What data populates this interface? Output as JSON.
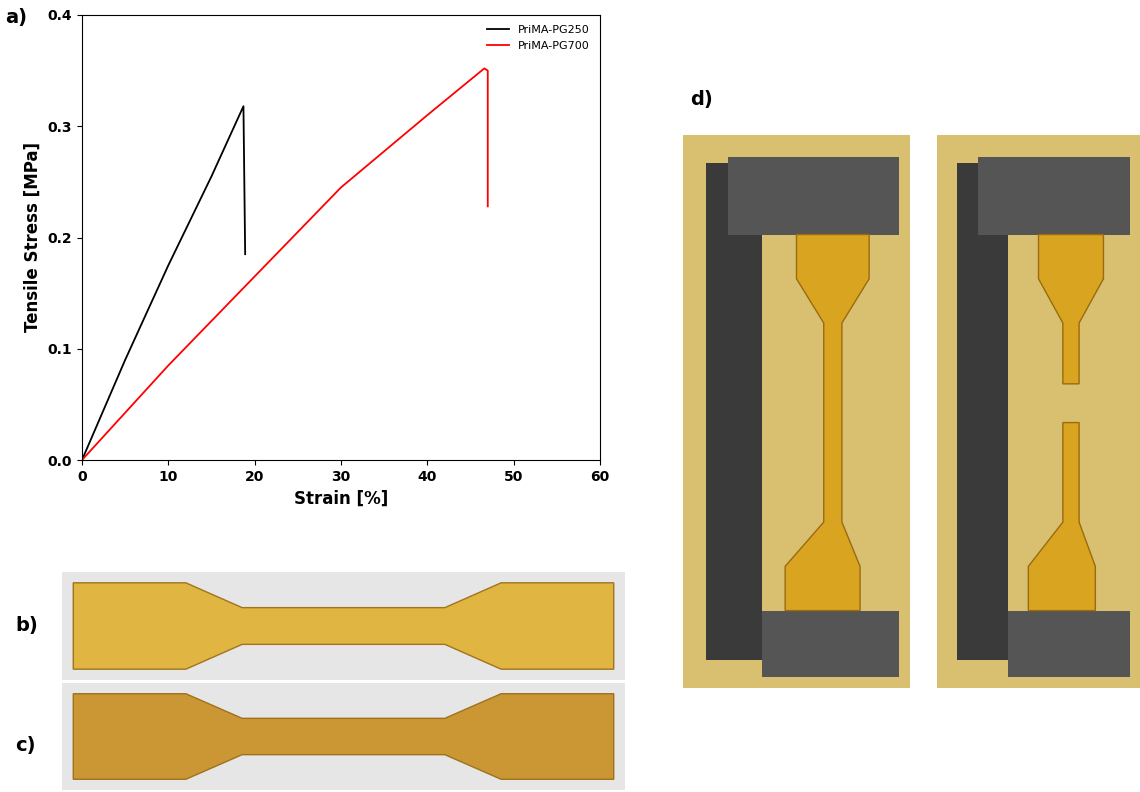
{
  "chart_data": {
    "type": "line",
    "x_label": "Strain [%]",
    "y_label": "Tensile Stress [MPa]",
    "xlim": [
      0,
      60
    ],
    "xticks": [
      0,
      10,
      20,
      30,
      40,
      50,
      60
    ],
    "ylim": [
      0.0,
      0.4
    ],
    "yticks": [
      0.0,
      0.1,
      0.2,
      0.3,
      0.4
    ],
    "legend": "upper right",
    "series": [
      {
        "name": "PriMA-PG250",
        "color": "#000000",
        "x": [
          0,
          5,
          10,
          15,
          18.7,
          18.9
        ],
        "values": [
          0,
          0.09,
          0.175,
          0.255,
          0.318,
          0.185
        ]
      },
      {
        "name": "PriMA-PG700",
        "color": "#ff0000",
        "x": [
          0,
          10,
          20,
          30,
          40,
          46.6,
          47.0,
          47.0
        ],
        "values": [
          0,
          0.085,
          0.165,
          0.245,
          0.31,
          0.352,
          0.35,
          0.228
        ]
      }
    ]
  },
  "panel_labels": [
    "a)",
    "b)",
    "c)",
    "d)"
  ]
}
